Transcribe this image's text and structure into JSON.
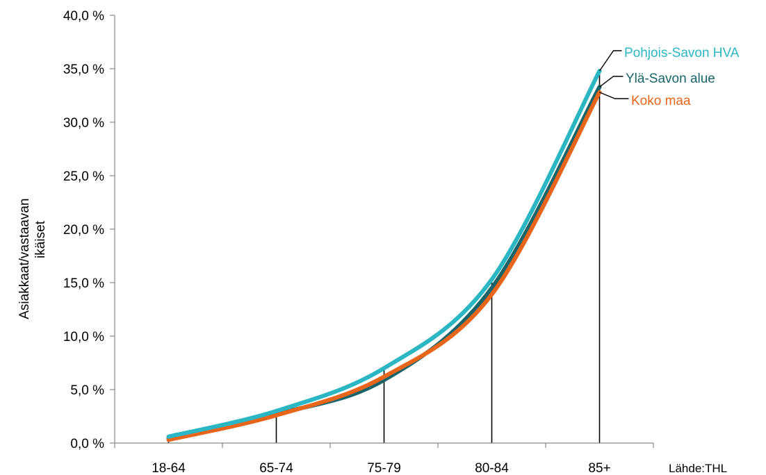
{
  "chart_data": {
    "type": "line",
    "categories": [
      "18-64",
      "65-74",
      "75-79",
      "80-84",
      "85+"
    ],
    "ylabel": "Asiakkaat/vastaavan ikäiset",
    "ylabel_lines": [
      "Asiakkaat/vastaavan",
      "ikäiset"
    ],
    "ylim": [
      0,
      40
    ],
    "yticks": [
      "0,0 %",
      "5,0 %",
      "10,0 %",
      "15,0 %",
      "20,0 %",
      "25,0 %",
      "30,0 %",
      "35,0 %",
      "40,0 %"
    ],
    "ytick_values": [
      0,
      5,
      10,
      15,
      20,
      25,
      30,
      35,
      40
    ],
    "grid": false,
    "droplines": true,
    "source_note": "Lähde:THL",
    "series": [
      {
        "name": "Pohjois-Savon HVA",
        "values": [
          0.6,
          3.0,
          7.0,
          15.3,
          34.8
        ],
        "color": "#2ab7c3"
      },
      {
        "name": "Ylä-Savon alue",
        "values": [
          0.4,
          2.7,
          5.9,
          14.5,
          33.3
        ],
        "color": "#17656a"
      },
      {
        "name": "Koko maa",
        "values": [
          0.3,
          2.6,
          6.2,
          13.9,
          32.8
        ],
        "color": "#e8651a"
      }
    ]
  }
}
